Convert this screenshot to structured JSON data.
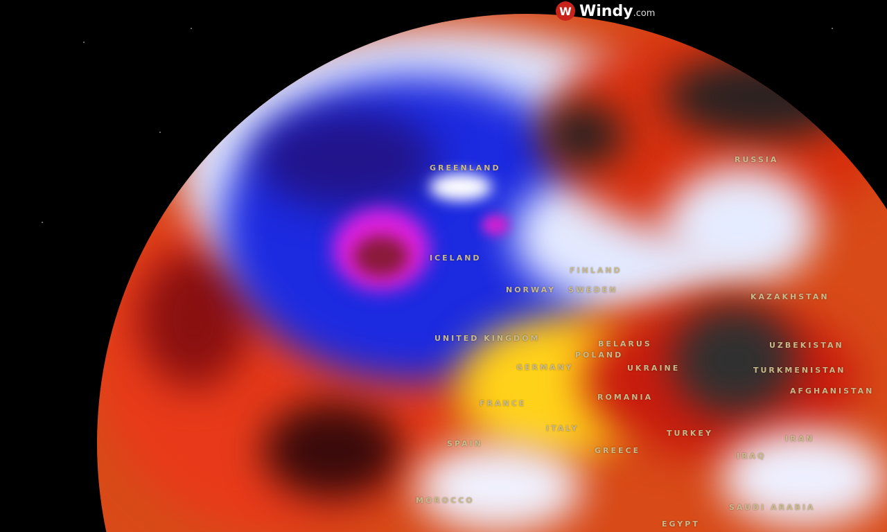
{
  "brand": {
    "name": "Windy",
    "domain": ".com",
    "logo_icon": "windy-w-logo"
  },
  "map": {
    "projection": "globe",
    "layer_colors": {
      "cold": "#1a2ad0",
      "very_cold": "#e020e0",
      "neutral": "#e8ecff",
      "warm": "#ffd21a",
      "hot": "#e4321a",
      "very_hot": "#2a2a2a"
    },
    "labels": [
      "GREENLAND",
      "RUSSIA",
      "ICELAND",
      "FINLAND",
      "NORWAY",
      "SWEDEN",
      "UNITED KINGDOM",
      "BELARUS",
      "POLAND",
      "GERMANY",
      "UKRAINE",
      "KAZAKHSTAN",
      "UZBEKISTAN",
      "TURKMENISTAN",
      "AFGHANISTAN",
      "ROMANIA",
      "FRANCE",
      "SPAIN",
      "ITALY",
      "GREECE",
      "TURKEY",
      "IRAN",
      "IRAQ",
      "MOROCCO",
      "SAUDI ARABIA",
      "EGYPT"
    ]
  }
}
